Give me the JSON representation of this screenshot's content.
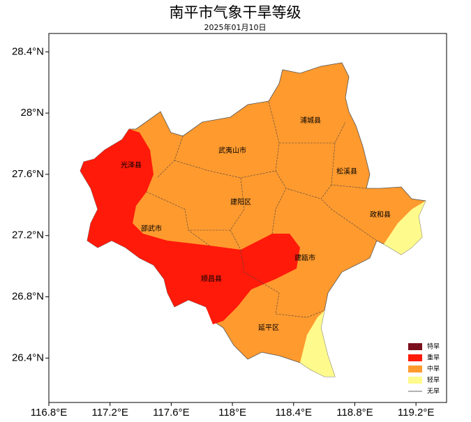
{
  "title": "南平市气象干旱等级",
  "date": "2025年01月10日",
  "map": {
    "xlim": [
      116.8,
      119.4
    ],
    "ylim": [
      26.11,
      28.52
    ],
    "xticks": [
      {
        "value": 116.8,
        "label": "116.8°E"
      },
      {
        "value": 117.2,
        "label": "117.2°E"
      },
      {
        "value": 117.6,
        "label": "117.6°E"
      },
      {
        "value": 118,
        "label": "118°E"
      },
      {
        "value": 118.4,
        "label": "118.4°E"
      },
      {
        "value": 118.8,
        "label": "118.8°E"
      },
      {
        "value": 119.2,
        "label": "119.2°E"
      }
    ],
    "yticks": [
      {
        "value": 26.4,
        "label": "26.4°N"
      },
      {
        "value": 26.8,
        "label": "26.8°N"
      },
      {
        "value": 27.2,
        "label": "27.2°N"
      },
      {
        "value": 27.6,
        "label": "27.6°N"
      },
      {
        "value": 28,
        "label": "28°N"
      },
      {
        "value": 28.4,
        "label": "28.4°N"
      }
    ],
    "regions": [
      "光泽县",
      "武夷山市",
      "浦城县",
      "松溪县",
      "建阳区",
      "政和县",
      "邵武市",
      "建瓯市",
      "顺昌县",
      "延平区"
    ],
    "legend": [
      {
        "name": "特旱",
        "color": "#7a0e1c",
        "symbol": "rect"
      },
      {
        "name": "重旱",
        "color": "#ff1a0a",
        "symbol": "rect"
      },
      {
        "name": "中旱",
        "color": "#ff9a2e",
        "symbol": "rect"
      },
      {
        "name": "轻旱",
        "color": "#fffa8c",
        "symbol": "rect"
      },
      {
        "name": "无旱",
        "color": "#333333",
        "symbol": "line"
      }
    ]
  }
}
